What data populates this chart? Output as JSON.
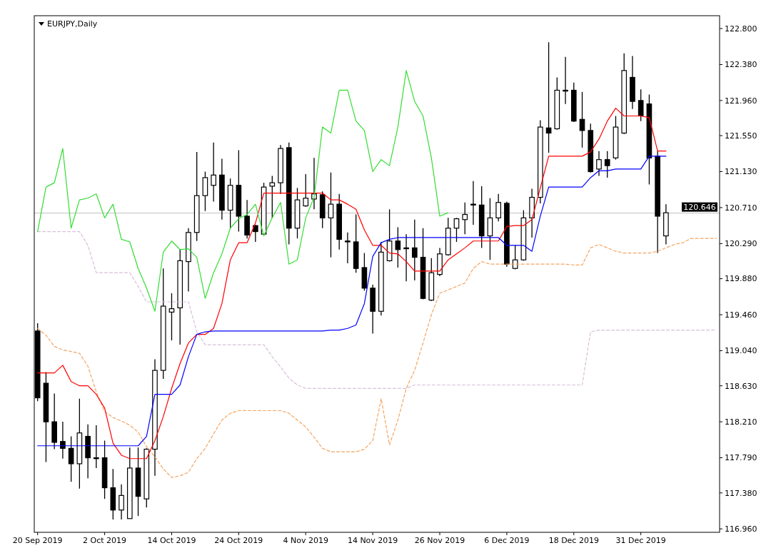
{
  "chart_data": {
    "type": "candlestick",
    "title": "EURJPY,Daily",
    "color": "#000000",
    "categories": [
      "20 Sep 2019",
      null,
      null,
      null,
      null,
      null,
      null,
      null,
      "2 Oct 2019",
      null,
      null,
      null,
      null,
      null,
      null,
      null,
      "14 Oct 2019",
      null,
      null,
      null,
      null,
      null,
      null,
      null,
      "24 Oct 2019",
      null,
      null,
      null,
      null,
      null,
      null,
      null,
      "4 Nov 2019",
      null,
      null,
      null,
      null,
      null,
      null,
      null,
      "14 Nov 2019",
      null,
      null,
      null,
      null,
      null,
      null,
      null,
      "26 Nov 2019",
      null,
      null,
      null,
      null,
      null,
      null,
      null,
      "6 Dec 2019",
      null,
      null,
      null,
      null,
      null,
      null,
      null,
      "18 Dec 2019",
      null,
      null,
      null,
      null,
      null,
      null,
      null,
      "31 Dec 2019",
      null,
      null,
      null,
      null,
      null,
      null,
      null,
      null,
      null
    ],
    "ohlc": [
      [
        119.27,
        119.36,
        118.45,
        118.49
      ],
      [
        118.66,
        118.79,
        117.74,
        118.21
      ],
      [
        118.21,
        118.54,
        117.89,
        117.97
      ],
      [
        117.98,
        118.21,
        117.78,
        117.9
      ],
      [
        117.9,
        118.04,
        117.51,
        117.72
      ],
      [
        117.72,
        118.48,
        117.43,
        118.08
      ],
      [
        118.04,
        118.18,
        117.55,
        117.79
      ],
      [
        117.79,
        118.17,
        117.67,
        117.78
      ],
      [
        117.79,
        117.99,
        117.31,
        117.44
      ],
      [
        117.44,
        117.66,
        117.07,
        117.18
      ],
      [
        117.18,
        117.48,
        117.07,
        117.35
      ],
      [
        117.08,
        117.91,
        117.08,
        117.67
      ],
      [
        117.67,
        117.91,
        117.11,
        117.34
      ],
      [
        117.31,
        117.9,
        117.21,
        117.89
      ],
      [
        117.89,
        118.94,
        117.58,
        118.81
      ],
      [
        118.81,
        120.0,
        118.71,
        119.56
      ],
      [
        119.49,
        119.71,
        119.16,
        119.53
      ],
      [
        119.54,
        120.22,
        119.11,
        120.09
      ],
      [
        120.08,
        120.47,
        119.73,
        120.42
      ],
      [
        120.42,
        121.36,
        120.32,
        120.85
      ],
      [
        120.85,
        121.13,
        120.67,
        121.06
      ],
      [
        120.97,
        121.47,
        120.78,
        121.09
      ],
      [
        121.09,
        121.28,
        120.57,
        120.68
      ],
      [
        120.68,
        121.05,
        120.47,
        120.97
      ],
      [
        120.97,
        121.38,
        120.43,
        120.61
      ],
      [
        120.61,
        120.8,
        120.35,
        120.39
      ],
      [
        120.5,
        120.51,
        120.31,
        120.43
      ],
      [
        120.4,
        121.0,
        120.4,
        120.95
      ],
      [
        120.96,
        121.08,
        120.59,
        121.0
      ],
      [
        121.0,
        121.44,
        120.87,
        121.4
      ],
      [
        121.41,
        121.47,
        120.28,
        120.47
      ],
      [
        120.47,
        120.94,
        120.35,
        120.8
      ],
      [
        120.73,
        121.1,
        120.72,
        120.82
      ],
      [
        120.81,
        121.29,
        120.69,
        120.87
      ],
      [
        120.86,
        120.9,
        120.47,
        120.59
      ],
      [
        120.59,
        121.12,
        120.13,
        120.75
      ],
      [
        120.75,
        120.87,
        120.22,
        120.34
      ],
      [
        120.32,
        120.42,
        120.06,
        120.31
      ],
      [
        120.31,
        120.63,
        119.95,
        120.0
      ],
      [
        120.01,
        120.18,
        119.74,
        119.77
      ],
      [
        119.77,
        119.81,
        119.24,
        119.5
      ],
      [
        119.5,
        120.31,
        119.45,
        120.19
      ],
      [
        120.09,
        120.69,
        120.08,
        120.32
      ],
      [
        120.32,
        120.48,
        120.01,
        120.22
      ],
      [
        120.24,
        120.4,
        119.85,
        120.23
      ],
      [
        120.24,
        120.57,
        119.86,
        120.13
      ],
      [
        120.13,
        120.47,
        119.64,
        119.65
      ],
      [
        119.63,
        120.12,
        119.62,
        119.95
      ],
      [
        119.93,
        120.24,
        119.91,
        120.17
      ],
      [
        120.16,
        120.59,
        120.15,
        120.47
      ],
      [
        120.47,
        120.59,
        120.31,
        120.58
      ],
      [
        120.57,
        120.77,
        120.4,
        120.63
      ],
      [
        120.74,
        121.02,
        120.51,
        120.75
      ],
      [
        120.74,
        120.96,
        120.24,
        120.38
      ],
      [
        120.38,
        120.82,
        120.1,
        120.59
      ],
      [
        120.59,
        120.87,
        120.55,
        120.77
      ],
      [
        120.76,
        120.78,
        120.02,
        120.05
      ],
      [
        120.0,
        120.27,
        119.99,
        120.1
      ],
      [
        120.1,
        120.68,
        120.09,
        120.59
      ],
      [
        120.59,
        120.93,
        120.36,
        120.83
      ],
      [
        120.83,
        121.73,
        120.76,
        121.65
      ],
      [
        121.64,
        122.64,
        121.35,
        121.58
      ],
      [
        121.63,
        122.23,
        121.62,
        122.08
      ],
      [
        122.07,
        122.47,
        121.92,
        122.08
      ],
      [
        122.08,
        122.17,
        121.71,
        121.72
      ],
      [
        121.74,
        122.06,
        121.41,
        121.61
      ],
      [
        121.61,
        121.69,
        121.12,
        121.13
      ],
      [
        121.16,
        121.37,
        121.08,
        121.27
      ],
      [
        121.27,
        121.37,
        121.06,
        121.2
      ],
      [
        121.29,
        121.78,
        121.27,
        121.65
      ],
      [
        121.58,
        122.51,
        121.57,
        122.31
      ],
      [
        122.23,
        122.48,
        121.86,
        121.95
      ],
      [
        121.96,
        122.09,
        121.72,
        121.78
      ],
      [
        121.92,
        122.03,
        120.98,
        121.29
      ],
      [
        121.31,
        121.37,
        120.18,
        120.61
      ],
      [
        120.38,
        120.75,
        120.28,
        120.65
      ],
      null,
      null,
      null,
      null,
      null,
      null
    ],
    "series": [
      {
        "type": "line",
        "color": "#f4a460",
        "line_style": "dashed",
        "values": [
          119.3,
          119.22,
          119.09,
          119.05,
          119.03,
          119.01,
          118.86,
          118.56,
          118.33,
          118.26,
          118.22,
          118.17,
          118.09,
          117.92,
          117.8,
          117.66,
          117.56,
          117.58,
          117.62,
          117.78,
          117.9,
          118.07,
          118.23,
          118.31,
          118.34,
          118.34,
          118.34,
          118.34,
          118.34,
          118.34,
          118.31,
          118.23,
          118.15,
          118.03,
          117.9,
          117.86,
          117.86,
          117.86,
          117.86,
          117.89,
          117.99,
          118.48,
          117.94,
          118.23,
          118.6,
          118.81,
          119.13,
          119.46,
          119.71,
          119.75,
          119.79,
          119.83,
          120.0,
          120.08,
          120.05,
          120.05,
          120.05,
          120.05,
          120.05,
          120.05,
          120.05,
          120.05,
          120.05,
          120.05,
          120.04,
          120.04,
          120.24,
          120.28,
          120.24,
          120.2,
          120.18,
          120.18,
          120.18,
          120.18,
          120.2,
          120.24,
          120.28,
          120.3,
          120.35,
          120.35,
          120.35,
          120.35
        ]
      },
      {
        "type": "line",
        "color": "#d8bfd8",
        "line_style": "dashed",
        "values": [
          120.43,
          120.43,
          120.43,
          120.43,
          120.43,
          120.43,
          120.27,
          119.95,
          119.95,
          119.95,
          119.95,
          119.95,
          119.79,
          119.61,
          119.61,
          119.61,
          119.61,
          119.61,
          119.61,
          119.26,
          119.11,
          119.11,
          119.11,
          119.11,
          119.11,
          119.11,
          119.11,
          119.11,
          118.97,
          118.85,
          118.72,
          118.64,
          118.6,
          118.6,
          118.6,
          118.6,
          118.6,
          118.6,
          118.6,
          118.6,
          118.6,
          118.6,
          118.6,
          118.6,
          118.6,
          118.64,
          118.64,
          118.64,
          118.64,
          118.64,
          118.64,
          118.64,
          118.64,
          118.64,
          118.64,
          118.64,
          118.64,
          118.64,
          118.64,
          118.64,
          118.64,
          118.64,
          118.64,
          118.64,
          118.64,
          118.64,
          119.26,
          119.28,
          119.28,
          119.28,
          119.28,
          119.28,
          119.28,
          119.28,
          119.28,
          119.28,
          119.28,
          119.28,
          119.28,
          119.28,
          119.28,
          119.28
        ]
      },
      {
        "type": "line",
        "color": "#ff0000",
        "values": [
          118.78,
          118.78,
          118.78,
          118.87,
          118.68,
          118.63,
          118.63,
          118.53,
          118.37,
          117.96,
          117.82,
          117.78,
          117.78,
          117.78,
          117.99,
          118.27,
          118.6,
          118.89,
          119.13,
          119.23,
          119.23,
          119.3,
          119.59,
          120.1,
          120.3,
          120.3,
          120.53,
          120.88,
          120.88,
          120.88,
          120.88,
          120.88,
          120.88,
          120.88,
          120.88,
          120.8,
          120.8,
          120.75,
          120.69,
          120.45,
          120.27,
          120.27,
          120.18,
          120.17,
          120.08,
          119.97,
          119.97,
          119.97,
          119.97,
          120.1,
          120.17,
          120.24,
          120.32,
          120.32,
          120.32,
          120.32,
          120.49,
          120.5,
          120.5,
          120.57,
          120.94,
          121.31,
          121.31,
          121.31,
          121.31,
          121.31,
          121.36,
          121.51,
          121.72,
          121.87,
          121.78,
          121.78,
          121.78,
          121.76,
          121.37,
          121.37,
          null,
          null,
          null,
          null,
          null,
          null
        ]
      },
      {
        "type": "line",
        "color": "#0000ff",
        "values": [
          117.93,
          117.93,
          117.93,
          117.93,
          117.93,
          117.93,
          117.93,
          117.93,
          117.93,
          117.93,
          117.93,
          117.93,
          117.93,
          118.04,
          118.53,
          118.53,
          118.53,
          118.64,
          118.97,
          119.23,
          119.26,
          119.27,
          119.27,
          119.27,
          119.27,
          119.27,
          119.27,
          119.27,
          119.27,
          119.27,
          119.27,
          119.27,
          119.27,
          119.27,
          119.27,
          119.28,
          119.28,
          119.3,
          119.34,
          119.59,
          120.14,
          120.3,
          120.34,
          120.36,
          120.36,
          120.36,
          120.36,
          120.36,
          120.36,
          120.36,
          120.36,
          120.36,
          120.36,
          120.36,
          120.36,
          120.36,
          120.27,
          120.27,
          120.27,
          120.2,
          120.61,
          120.95,
          120.95,
          120.95,
          120.95,
          120.95,
          121.06,
          121.14,
          121.14,
          121.16,
          121.16,
          121.16,
          121.16,
          121.31,
          121.31,
          121.31,
          null,
          null,
          null,
          null,
          null,
          null
        ]
      },
      {
        "type": "line",
        "color": "#33dd33",
        "values": [
          120.43,
          120.95,
          121.0,
          121.4,
          120.47,
          120.8,
          120.82,
          120.87,
          120.59,
          120.75,
          120.34,
          120.31,
          120.0,
          119.77,
          119.5,
          120.19,
          120.32,
          120.22,
          120.23,
          120.13,
          119.65,
          119.95,
          120.17,
          120.47,
          120.58,
          120.63,
          120.75,
          120.38,
          120.59,
          120.77,
          120.05,
          120.1,
          120.59,
          120.83,
          121.65,
          121.58,
          122.08,
          122.08,
          121.72,
          121.61,
          121.13,
          121.27,
          121.2,
          121.65,
          122.31,
          121.95,
          121.78,
          121.29,
          120.61,
          120.65,
          null,
          null,
          null,
          null,
          null,
          null,
          null,
          null,
          null,
          null,
          null,
          null,
          null,
          null,
          null,
          null,
          null,
          null,
          null,
          null,
          null,
          null,
          null,
          null,
          null,
          null,
          null,
          null,
          null,
          null,
          null,
          null
        ]
      }
    ],
    "ylim": [
      116.92,
      122.95
    ],
    "yticks": [
      {
        "value": 122.8,
        "label": "122.800"
      },
      {
        "value": 122.38,
        "label": "122.380"
      },
      {
        "value": 121.96,
        "label": "121.960"
      },
      {
        "value": 121.55,
        "label": "121.550"
      },
      {
        "value": 121.13,
        "label": "121.130"
      },
      {
        "value": 120.71,
        "label": "120.710"
      },
      {
        "value": 120.29,
        "label": "120.290"
      },
      {
        "value": 119.88,
        "label": "119.880"
      },
      {
        "value": 119.46,
        "label": "119.460"
      },
      {
        "value": 119.04,
        "label": "119.040"
      },
      {
        "value": 118.63,
        "label": "118.630"
      },
      {
        "value": 118.21,
        "label": "118.210"
      },
      {
        "value": 117.79,
        "label": "117.790"
      },
      {
        "value": 117.38,
        "label": "117.380"
      },
      {
        "value": 116.96,
        "label": "116.960"
      }
    ],
    "ref_lines": [
      {
        "axis": "y",
        "value": 120.646,
        "label": "120.646",
        "color": "#c0c0c0"
      }
    ],
    "grid": false
  }
}
